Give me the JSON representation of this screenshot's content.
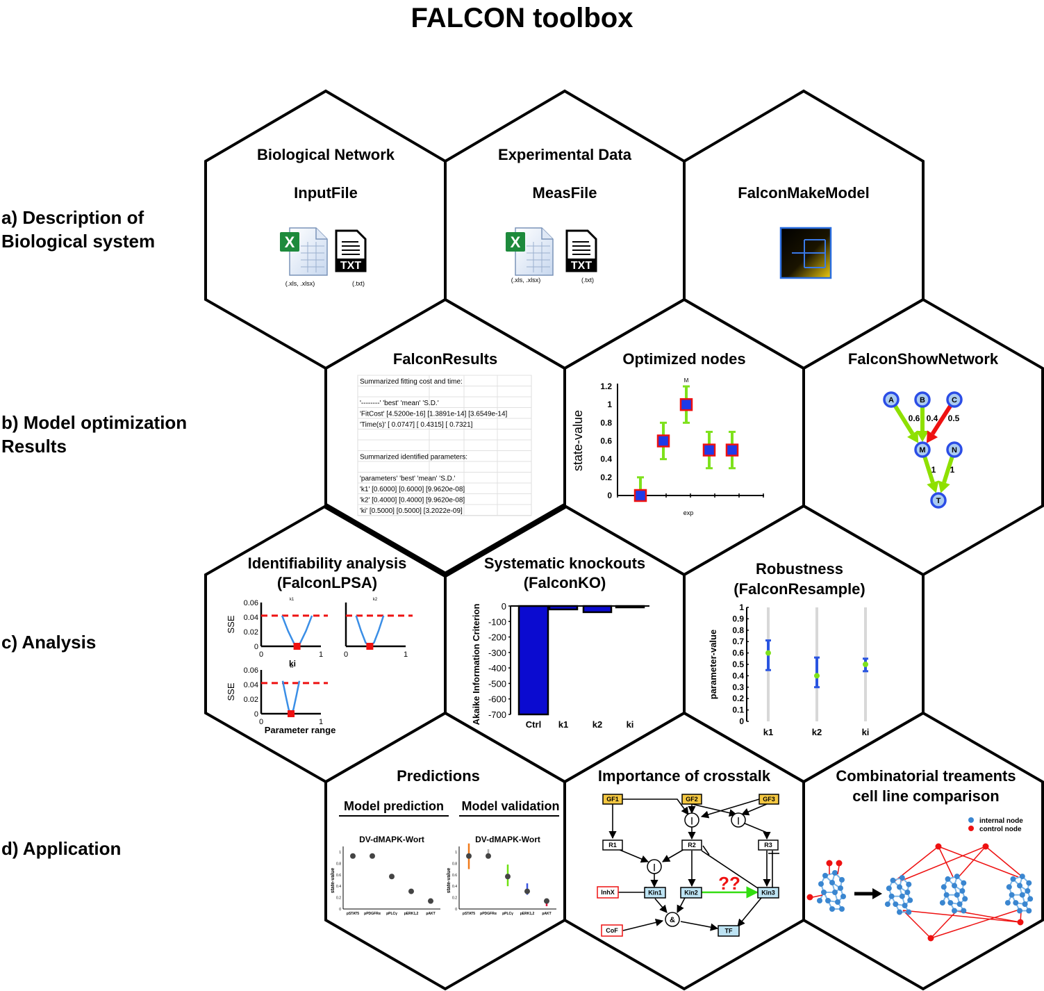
{
  "title": "FALCON toolbox",
  "row_labels": {
    "a": "a) Description of\nBiological system",
    "b": "b) Model optimization\nResults",
    "c": "c) Analysis",
    "d": "d) Application"
  },
  "hexes": {
    "bio_network": {
      "title": "Biological Network",
      "subtitle": "InputFile",
      "xls_caption": "(.xls, .xlsx)",
      "txt_caption": "(.txt)",
      "txt_label": "TXT"
    },
    "exp_data": {
      "title": "Experimental Data",
      "subtitle": "MeasFile",
      "xls_caption": "(.xls, .xlsx)",
      "txt_caption": "(.txt)",
      "txt_label": "TXT"
    },
    "make_model": {
      "title": "FalconMakeModel"
    },
    "results": {
      "title": "FalconResults",
      "table_rows": [
        "Summarized fitting cost and time:",
        "",
        "'--------'    'best'        'mean'        'S.D.'",
        "'FitCost'    [4.5200e-16]    [1.3891e-14]    [3.6549e-14]",
        "'Time(s)'    [    0.0747]    [    0.4315]    [    0.7321]",
        "",
        "",
        "Summarized identified parameters:",
        "",
        "'parameters'    'best'      'mean'      'S.D.'",
        "'k1'        [0.6000]    [0.6000]    [9.9620e-08]",
        "'k2'        [0.4000]    [0.4000]    [9.9620e-08]",
        "'ki'        [0.5000]    [0.5000]    [3.2022e-09]"
      ]
    },
    "optimized_nodes": {
      "title": "Optimized nodes"
    },
    "show_network": {
      "title": "FalconShowNetwork"
    },
    "lpsa": {
      "title": "Identifiability analysis",
      "subtitle": "(FalconLPSA)"
    },
    "ko": {
      "title": "Systematic knockouts",
      "subtitle": "(FalconKO)"
    },
    "resample": {
      "title": "Robustness",
      "subtitle": "(FalconResample)"
    },
    "predictions": {
      "title": "Predictions",
      "left_header": "Model prediction",
      "right_header": "Model validation"
    },
    "crosstalk": {
      "title": "Importance of crosstalk",
      "question": "??"
    },
    "combinatorial": {
      "title": "Combinatorial treaments",
      "subtitle": "cell line comparison",
      "legend_internal": "internal node",
      "legend_control": "control node"
    }
  },
  "network": {
    "nodes": [
      "A",
      "B",
      "C",
      "M",
      "N",
      "T"
    ],
    "edges": [
      {
        "from": "A",
        "to": "M",
        "weight": "0.6",
        "color": "#8ee000"
      },
      {
        "from": "B",
        "to": "M",
        "weight": "0.4",
        "color": "#8ee000"
      },
      {
        "from": "C",
        "to": "M",
        "weight": "0.5",
        "color": "#ee1111"
      },
      {
        "from": "M",
        "to": "T",
        "weight": "1",
        "color": "#8ee000"
      },
      {
        "from": "N",
        "to": "T",
        "weight": "1",
        "color": "#8ee000"
      }
    ]
  },
  "crosstalk_network": {
    "nodes": [
      "GF1",
      "GF2",
      "GF3",
      "R1",
      "R2",
      "R3",
      "InhX",
      "Kin1",
      "Kin2",
      "Kin3",
      "CoF",
      "TF",
      "|",
      "|",
      "|",
      "&"
    ]
  },
  "chart_data": [
    {
      "id": "optimized_nodes",
      "type": "scatter",
      "title": "",
      "xlabel": "exp",
      "ylabel": "state-value",
      "ylim": [
        0,
        1.2
      ],
      "yticks": [
        "0",
        "0.2",
        "0.4",
        "0.6",
        "0.8",
        "1",
        "1.2"
      ],
      "annotation": "M",
      "series": [
        {
          "x": [
            1,
            2,
            3,
            4,
            5
          ],
          "values": [
            0,
            0.6,
            1,
            0.5,
            0.5
          ],
          "lower": [
            0,
            0.4,
            0.8,
            0.3,
            0.3
          ],
          "upper": [
            0.2,
            0.8,
            1.2,
            0.7,
            0.7
          ]
        }
      ]
    },
    {
      "id": "lpsa_k1",
      "type": "line",
      "title": "k1",
      "xlabel": "",
      "ylabel": "SSE",
      "xlim": [
        0,
        1
      ],
      "ylim": [
        0,
        0.06
      ],
      "yticks": [
        "0",
        "0.02",
        "0.04",
        "0.06"
      ],
      "xticks": [
        "0",
        "1"
      ],
      "threshold": 0.042,
      "optimum": 0.6,
      "curve": {
        "x": [
          0.35,
          0.45,
          0.55,
          0.6,
          0.65,
          0.75,
          0.85
        ],
        "values": [
          0.042,
          0.021,
          0.004,
          0.0,
          0.004,
          0.021,
          0.042
        ]
      }
    },
    {
      "id": "lpsa_k2",
      "type": "line",
      "title": "k2",
      "xlabel": "",
      "ylabel": "",
      "xlim": [
        0,
        1
      ],
      "ylim": [
        0,
        0.06
      ],
      "xticks": [
        "0",
        "1"
      ],
      "threshold": 0.042,
      "optimum": 0.4,
      "curve": {
        "x": [
          0.17,
          0.25,
          0.33,
          0.4,
          0.47,
          0.55,
          0.63
        ],
        "values": [
          0.042,
          0.022,
          0.005,
          0.0,
          0.005,
          0.022,
          0.042
        ]
      }
    },
    {
      "id": "lpsa_ki",
      "type": "line",
      "title": "ki",
      "xlabel": "Parameter range",
      "ylabel": "SSE",
      "xlim": [
        0,
        1
      ],
      "ylim": [
        0,
        0.06
      ],
      "yticks": [
        "0",
        "0.02",
        "0.04",
        "0.06"
      ],
      "xticks": [
        "0",
        "1"
      ],
      "threshold": 0.042,
      "optimum": 0.5,
      "curve": {
        "x": [
          0.36,
          0.41,
          0.46,
          0.5,
          0.54,
          0.59,
          0.64
        ],
        "values": [
          0.045,
          0.025,
          0.006,
          0.0,
          0.006,
          0.025,
          0.045
        ]
      }
    },
    {
      "id": "knockouts",
      "type": "bar",
      "title": "",
      "xlabel": "",
      "ylabel": "Akaike Information Criterion",
      "categories": [
        "Ctrl",
        "k1",
        "k2",
        "ki"
      ],
      "values": [
        -700,
        -22,
        -40,
        -8
      ],
      "ylim": [
        -700,
        0
      ],
      "yticks": [
        "0",
        "-100",
        "-200",
        "-300",
        "-400",
        "-500",
        "-600",
        "-700"
      ]
    },
    {
      "id": "resample",
      "type": "scatter",
      "title": "",
      "xlabel": "",
      "ylabel": "parameter-value",
      "categories": [
        "k1",
        "k2",
        "ki"
      ],
      "values": [
        0.6,
        0.4,
        0.5
      ],
      "lower": [
        0.45,
        0.3,
        0.44
      ],
      "upper": [
        0.71,
        0.56,
        0.55
      ],
      "ylim": [
        0,
        1
      ],
      "yticks": [
        "0",
        "0.1",
        "0.2",
        "0.3",
        "0.4",
        "0.5",
        "0.6",
        "0.7",
        "0.8",
        "0.9",
        "1"
      ]
    },
    {
      "id": "prediction",
      "type": "scatter",
      "title": "DV-dMAPK-Wort",
      "ylabel": "state-value",
      "categories": [
        "pSTAT5",
        "pPDGFRα",
        "pPLCγ",
        "pERK1,2",
        "pAKT"
      ],
      "values": [
        0.93,
        0.93,
        0.57,
        0.31,
        0.14
      ],
      "ylim": [
        0,
        1
      ],
      "yticks": [
        "0",
        "0.2",
        "0.4",
        "0.6",
        "0.8",
        "1"
      ]
    },
    {
      "id": "validation",
      "type": "scatter",
      "title": "DV-dMAPK-Wort",
      "ylabel": "state-value",
      "categories": [
        "pSTAT5",
        "pPDGFRα",
        "pPLCγ",
        "pERK1,2",
        "pAKT"
      ],
      "values": [
        0.93,
        0.93,
        0.57,
        0.31,
        0.14
      ],
      "ylim": [
        0,
        1
      ],
      "yticks": [
        "0",
        "0.2",
        "0.4",
        "0.6",
        "0.8",
        "1"
      ],
      "error_bars": [
        {
          "lower": 0.7,
          "upper": 1.15,
          "color": "#f07a1a"
        },
        {
          "lower": 0.9,
          "upper": 1.05,
          "color": "#b0b0b0"
        },
        {
          "lower": 0.4,
          "upper": 0.78,
          "color": "#6ee010"
        },
        {
          "lower": 0.25,
          "upper": 0.45,
          "color": "#3a55e0"
        },
        {
          "lower": 0.05,
          "upper": 0.18,
          "color": "#e0103a"
        }
      ]
    }
  ]
}
